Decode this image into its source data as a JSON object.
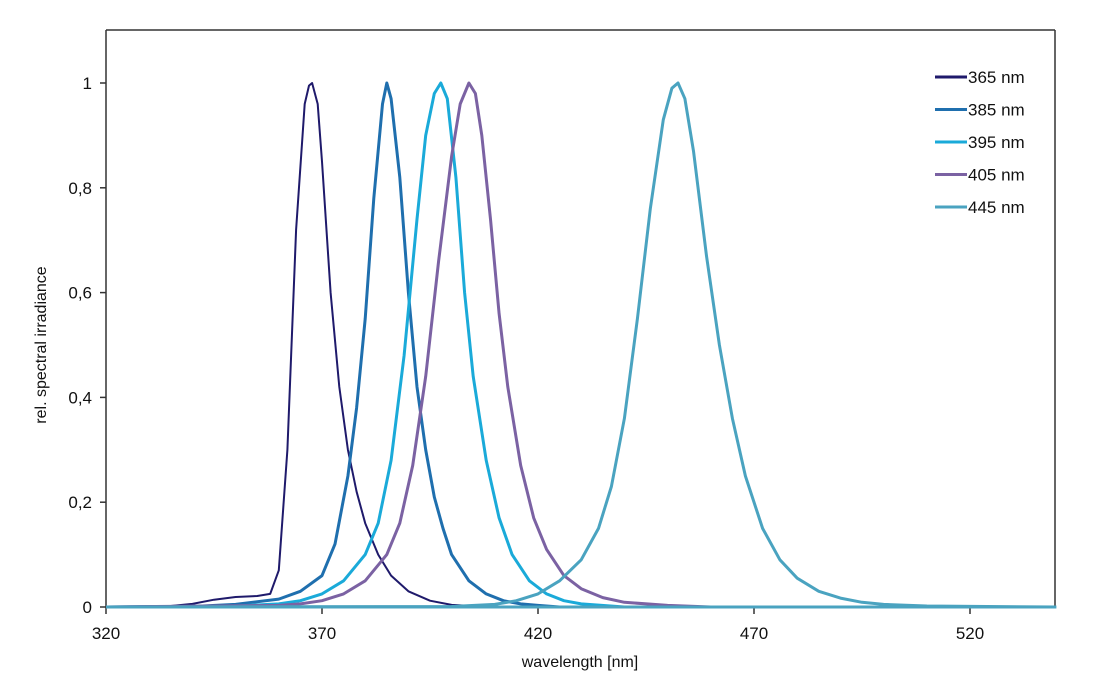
{
  "chart_data": {
    "type": "line",
    "title": "",
    "xlabel": "wavelength [nm]",
    "ylabel": "rel. spectral irradiance",
    "xlim": [
      320,
      540
    ],
    "ylim": [
      0,
      1.1
    ],
    "x_ticks": [
      320,
      370,
      420,
      470,
      520
    ],
    "y_ticks": [
      0,
      0.2,
      0.4,
      0.6,
      0.8,
      1
    ],
    "y_tick_labels": [
      "0",
      "0,2",
      "0,4",
      "0,6",
      "0,8",
      "1"
    ],
    "grid": false,
    "legend_position": "top-right inside",
    "series": [
      {
        "name": "365 nm",
        "color": "#1f1a6b",
        "width": 2,
        "x": [
          320,
          335,
          340,
          345,
          350,
          355,
          358,
          360,
          362,
          364,
          366,
          367,
          367.7,
          369,
          370,
          372,
          374,
          376,
          378,
          380,
          383,
          386,
          390,
          395,
          400,
          405,
          410,
          420
        ],
        "y": [
          0,
          0.002,
          0.006,
          0.014,
          0.019,
          0.021,
          0.025,
          0.07,
          0.3,
          0.72,
          0.96,
          0.995,
          1.0,
          0.96,
          0.85,
          0.6,
          0.42,
          0.3,
          0.22,
          0.16,
          0.1,
          0.06,
          0.03,
          0.012,
          0.004,
          0.002,
          0.001,
          0
        ]
      },
      {
        "name": "385 nm",
        "color": "#1f6fae",
        "width": 3,
        "x": [
          320,
          340,
          350,
          360,
          365,
          370,
          373,
          376,
          378,
          380,
          382,
          384,
          385,
          386,
          388,
          390,
          392,
          394,
          396,
          398,
          400,
          404,
          408,
          412,
          416,
          420,
          425
        ],
        "y": [
          0,
          0.001,
          0.005,
          0.015,
          0.03,
          0.06,
          0.12,
          0.25,
          0.38,
          0.55,
          0.78,
          0.96,
          1.0,
          0.97,
          0.82,
          0.6,
          0.42,
          0.3,
          0.21,
          0.15,
          0.1,
          0.05,
          0.025,
          0.012,
          0.006,
          0.003,
          0
        ]
      },
      {
        "name": "395 nm",
        "color": "#1aaad9",
        "width": 3,
        "x": [
          320,
          350,
          360,
          365,
          370,
          375,
          380,
          383,
          386,
          389,
          392,
          394,
          396,
          397.5,
          399,
          401,
          403,
          405,
          408,
          411,
          414,
          418,
          422,
          426,
          430,
          440
        ],
        "y": [
          0,
          0.002,
          0.006,
          0.012,
          0.025,
          0.05,
          0.1,
          0.16,
          0.28,
          0.48,
          0.74,
          0.9,
          0.98,
          1.0,
          0.97,
          0.82,
          0.6,
          0.44,
          0.28,
          0.17,
          0.1,
          0.05,
          0.025,
          0.012,
          0.006,
          0
        ]
      },
      {
        "name": "405 nm",
        "color": "#7b62a3",
        "width": 3,
        "x": [
          320,
          360,
          365,
          370,
          375,
          380,
          385,
          388,
          391,
          394,
          397,
          400,
          402,
          404,
          405.5,
          407,
          409,
          411,
          413,
          416,
          419,
          422,
          426,
          430,
          435,
          440,
          450,
          460
        ],
        "y": [
          0,
          0.003,
          0.006,
          0.012,
          0.025,
          0.05,
          0.1,
          0.16,
          0.27,
          0.44,
          0.66,
          0.86,
          0.96,
          1.0,
          0.98,
          0.9,
          0.74,
          0.56,
          0.42,
          0.27,
          0.17,
          0.11,
          0.06,
          0.035,
          0.018,
          0.009,
          0.003,
          0
        ]
      },
      {
        "name": "445 nm",
        "color": "#4aa3c0",
        "width": 3,
        "x": [
          320,
          400,
          410,
          415,
          420,
          425,
          430,
          434,
          437,
          440,
          443,
          446,
          449,
          451,
          452.4,
          454,
          456,
          459,
          462,
          465,
          468,
          472,
          476,
          480,
          485,
          490,
          495,
          500,
          510,
          540
        ],
        "y": [
          0,
          0.001,
          0.005,
          0.012,
          0.025,
          0.05,
          0.09,
          0.15,
          0.23,
          0.36,
          0.55,
          0.76,
          0.93,
          0.99,
          1.0,
          0.97,
          0.87,
          0.67,
          0.5,
          0.36,
          0.25,
          0.15,
          0.09,
          0.055,
          0.03,
          0.017,
          0.009,
          0.005,
          0.002,
          0
        ]
      }
    ]
  }
}
